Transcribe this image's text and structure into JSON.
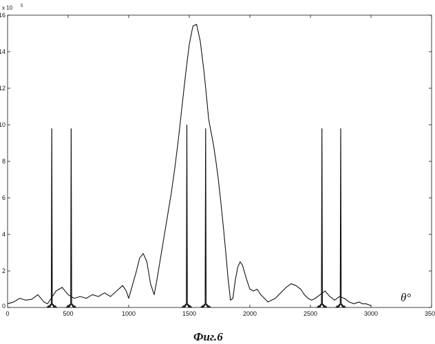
{
  "chart_data": {
    "type": "line",
    "xlabel": "θ°",
    "ylabel": "",
    "y_multiplier": "x 10",
    "y_exponent": "5",
    "caption": "Фиг.6",
    "xlim": [
      0,
      3500
    ],
    "ylim": [
      0,
      16
    ],
    "x_ticks": [
      "0",
      "500",
      "1000",
      "1500",
      "2000",
      "2500",
      "3000",
      "3500"
    ],
    "y_ticks": [
      "0",
      "2",
      "4",
      "6",
      "8",
      "10",
      "12",
      "14",
      "16"
    ],
    "grid": false,
    "legend": "none",
    "color": "#111111",
    "series": [
      {
        "x": [
          0,
          50,
          100,
          150,
          200,
          250,
          300,
          330,
          360,
          400,
          450,
          500,
          550,
          600,
          650,
          700,
          750,
          800,
          850,
          900,
          950,
          980,
          1000,
          1030,
          1060,
          1090,
          1120,
          1150,
          1180,
          1210,
          1230,
          1260,
          1290,
          1320,
          1350,
          1380,
          1410,
          1440,
          1470,
          1500,
          1530,
          1560,
          1590,
          1620,
          1640,
          1660,
          1680,
          1700,
          1720,
          1740,
          1760,
          1780,
          1800,
          1820,
          1840,
          1860,
          1880,
          1900,
          1920,
          1940,
          1970,
          2000,
          2030,
          2060,
          2090,
          2120,
          2150,
          2180,
          2210,
          2240,
          2270,
          2300,
          2340,
          2380,
          2420,
          2450,
          2480,
          2510,
          2540,
          2580,
          2620,
          2660,
          2700,
          2740,
          2780,
          2820,
          2860,
          2900,
          2930,
          2960,
          3000
        ],
        "y": [
          0.2,
          0.3,
          0.5,
          0.4,
          0.45,
          0.7,
          0.3,
          0.2,
          0.5,
          0.9,
          1.1,
          0.7,
          0.5,
          0.6,
          0.5,
          0.7,
          0.6,
          0.8,
          0.6,
          0.9,
          1.2,
          0.9,
          0.5,
          1.2,
          1.9,
          2.7,
          2.95,
          2.5,
          1.3,
          0.7,
          1.4,
          2.6,
          3.8,
          5.0,
          6.2,
          7.6,
          9.2,
          11.0,
          12.8,
          14.4,
          15.4,
          15.5,
          14.6,
          13.0,
          11.7,
          10.3,
          9.6,
          8.9,
          8.0,
          7.0,
          5.8,
          4.5,
          3.1,
          1.6,
          0.4,
          0.5,
          1.5,
          2.2,
          2.5,
          2.3,
          1.6,
          1.0,
          0.9,
          1.0,
          0.7,
          0.5,
          0.3,
          0.4,
          0.5,
          0.7,
          0.9,
          1.1,
          1.3,
          1.2,
          1.0,
          0.7,
          0.5,
          0.4,
          0.5,
          0.7,
          0.9,
          0.6,
          0.4,
          0.6,
          0.5,
          0.3,
          0.2,
          0.3,
          0.2,
          0.2,
          0.1
        ]
      },
      {
        "peaks_x": [
          365,
          525,
          1480,
          1635,
          2595,
          2750
        ],
        "peaks_y": [
          9.8,
          9.8,
          10.0,
          9.8,
          9.8,
          9.8
        ]
      }
    ]
  }
}
